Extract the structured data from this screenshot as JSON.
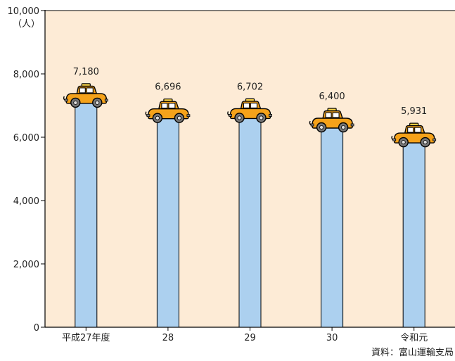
{
  "chart_data": {
    "type": "bar",
    "categories": [
      "平成27年度",
      "28",
      "29",
      "30",
      "令和元"
    ],
    "values": [
      7180,
      6696,
      6702,
      6400,
      5931
    ],
    "value_labels": [
      "7,180",
      "6,696",
      "6,702",
      "6,400",
      "5,931"
    ],
    "ylim": [
      0,
      10000
    ],
    "y_ticks": [
      0,
      2000,
      4000,
      6000,
      8000,
      10000
    ],
    "y_tick_labels": [
      "0",
      "2,000",
      "4,000",
      "6,000",
      "8,000",
      "10,000"
    ],
    "y_unit": "（人）",
    "source": "資料：富山運輸支局",
    "grid": false,
    "colors": {
      "plot_background": "#fdebd6",
      "bar_fill": "#acd0ef",
      "taxi_body": "#f5a21a",
      "taxi_sign": "#ffd84a"
    },
    "mark_icon": "taxi-icon"
  }
}
